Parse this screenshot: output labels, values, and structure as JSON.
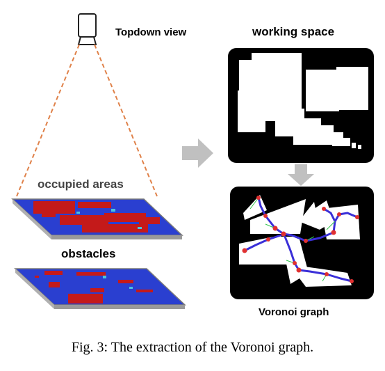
{
  "labels": {
    "topdown": "Topdown view",
    "working_space": "working space",
    "occupied_areas": "occupied areas",
    "obstacles": "obstacles",
    "voronoi_graph": "Voronoi graph"
  },
  "caption": "Fig. 3: The extraction of the Voronoi graph.",
  "colors": {
    "cone": "#e0824a",
    "map_blue": "#2a3fd0",
    "map_red": "#c41a1a",
    "arrow": "#c0c0c0",
    "graph_path": "#3a2fd8",
    "graph_node": "#e03030"
  },
  "icons": [
    "camera-icon",
    "right-arrow-icon",
    "down-arrow-icon"
  ]
}
